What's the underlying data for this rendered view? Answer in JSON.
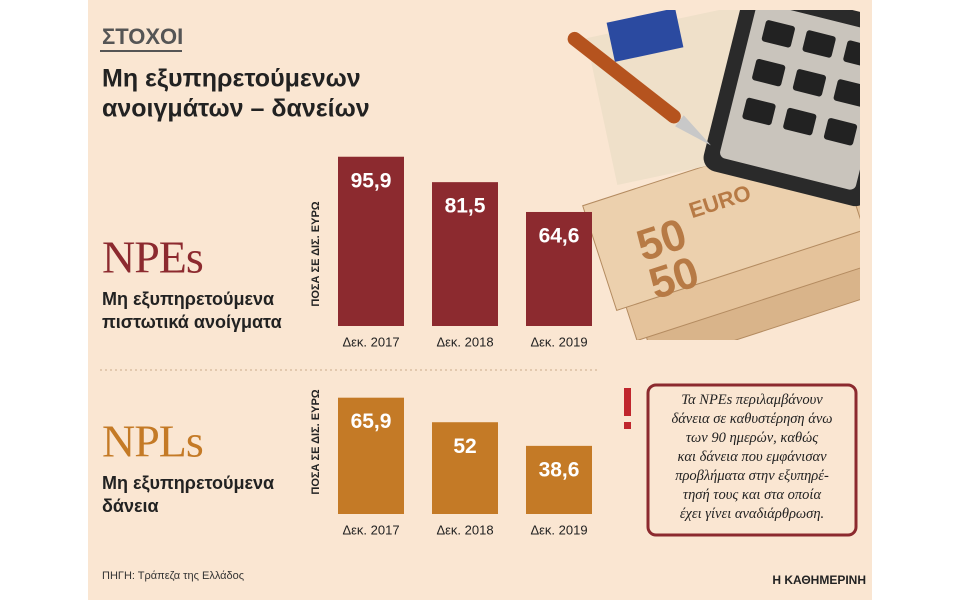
{
  "header": {
    "tag": "ΣΤΟΧΟΙ",
    "title": [
      "Μη εξυπηρετούμενων",
      "ανοιγμάτων – δανείων"
    ]
  },
  "chart_data": [
    {
      "type": "bar",
      "title": "NPEs",
      "subtitle": [
        "Μη εξυπηρετούμενα",
        "πιστωτικά ανοίγματα"
      ],
      "y_label": "ΠΟΣΑ ΣΕ ΔΙΣ. ΕΥΡΩ",
      "categories": [
        "Δεκ. 2017",
        "Δεκ. 2018",
        "Δεκ. 2019"
      ],
      "values": [
        95.9,
        81.5,
        64.6
      ],
      "value_labels": [
        "95,9",
        "81,5",
        "64,6"
      ],
      "color": "#8c2a2f"
    },
    {
      "type": "bar",
      "title": "NPLs",
      "subtitle": [
        "Μη εξυπηρετούμενα",
        "δάνεια"
      ],
      "y_label": "ΠΟΣΑ ΣΕ ΔΙΣ. ΕΥΡΩ",
      "categories": [
        "Δεκ. 2017",
        "Δεκ. 2018",
        "Δεκ. 2019"
      ],
      "values": [
        65.9,
        52,
        38.6
      ],
      "value_labels": [
        "65,9",
        "52",
        "38,6"
      ],
      "color": "#c47a26"
    }
  ],
  "note": [
    "Τα NPEs περιλαμβάνουν",
    "δάνεια σε καθυστέρηση άνω",
    "των 90 ημερών, καθώς",
    "και δάνεια που εμφάνισαν",
    "προβλήματα στην εξυπηρέ-",
    "τησή τους και στα οποία",
    "έχει γίνει αναδιάρθρωση."
  ],
  "footer": {
    "source": "ΠΗΓΗ: Τράπεζα της Ελλάδος",
    "brand": "Η ΚΑΘΗΜΕΡΙΝΗ"
  }
}
